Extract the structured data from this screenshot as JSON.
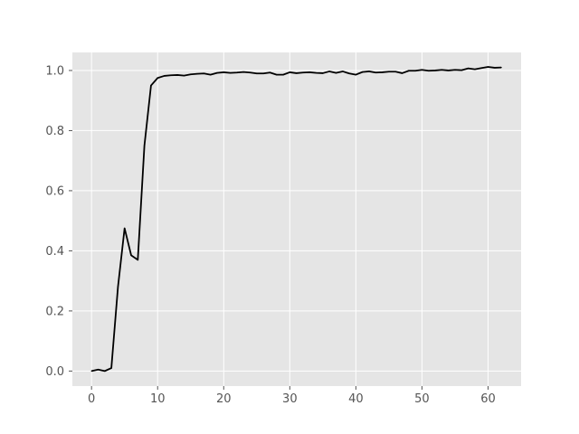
{
  "chart_data": {
    "type": "line",
    "title": "",
    "xlabel": "",
    "ylabel": "",
    "xlim": [
      -2.9,
      65
    ],
    "ylim": [
      -0.05,
      1.06
    ],
    "grid": true,
    "x_ticks": [
      0,
      10,
      20,
      30,
      40,
      50,
      60
    ],
    "y_ticks": [
      0.0,
      0.2,
      0.4,
      0.6,
      0.8,
      1.0
    ],
    "x_tick_labels": [
      "0",
      "10",
      "20",
      "30",
      "40",
      "50",
      "60"
    ],
    "y_tick_labels": [
      "0.0",
      "0.2",
      "0.4",
      "0.6",
      "0.8",
      "1.0"
    ],
    "series": [
      {
        "color": "#000000",
        "x": [
          0,
          1,
          2,
          3,
          4,
          5,
          6,
          7,
          8,
          9,
          10,
          11,
          12,
          13,
          14,
          15,
          16,
          17,
          18,
          19,
          20,
          21,
          22,
          23,
          24,
          25,
          26,
          27,
          28,
          29,
          30,
          31,
          32,
          33,
          34,
          35,
          36,
          37,
          38,
          39,
          40,
          41,
          42,
          43,
          44,
          45,
          46,
          47,
          48,
          49,
          50,
          51,
          52,
          53,
          54,
          55,
          56,
          57,
          58,
          59,
          60,
          61,
          62
        ],
        "y": [
          0.0,
          0.005,
          0.0,
          0.01,
          0.28,
          0.475,
          0.385,
          0.37,
          0.75,
          0.95,
          0.975,
          0.982,
          0.984,
          0.985,
          0.983,
          0.987,
          0.989,
          0.99,
          0.986,
          0.992,
          0.994,
          0.992,
          0.993,
          0.995,
          0.993,
          0.99,
          0.99,
          0.993,
          0.986,
          0.986,
          0.994,
          0.991,
          0.993,
          0.994,
          0.992,
          0.991,
          0.997,
          0.992,
          0.997,
          0.99,
          0.986,
          0.995,
          0.997,
          0.993,
          0.994,
          0.996,
          0.996,
          0.991,
          0.999,
          0.999,
          1.002,
          0.999,
          1.0,
          1.002,
          1.0,
          1.002,
          1.001,
          1.007,
          1.004,
          1.008,
          1.012,
          1.009,
          1.01
        ]
      }
    ]
  }
}
